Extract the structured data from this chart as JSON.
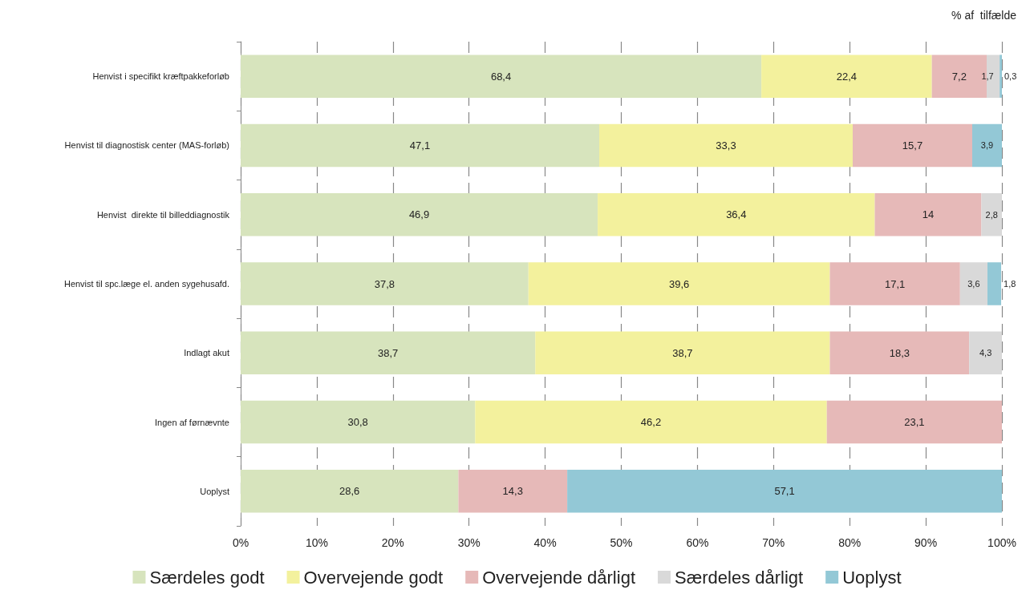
{
  "chart_data": {
    "type": "bar",
    "orientation": "horizontal",
    "stacked": true,
    "grid": "x",
    "legend": "bottom",
    "annotations": [
      "% af  tilfælde"
    ],
    "categories": [
      "Henvist i specifikt kræftpakkeforløb",
      "Henvist til diagnostisk center (MAS-forløb)",
      "Henvist  direkte til billeddiagnostik",
      "Henvist til spc.læge el. anden sygehusafd.",
      "Indlagt akut",
      "Ingen af førnævnte",
      "Uoplyst"
    ],
    "series": [
      {
        "name": "Særdeles godt",
        "color": "#d7e4bd",
        "values": [
          68.4,
          47.1,
          46.9,
          37.8,
          38.7,
          30.8,
          28.6
        ],
        "value_labels": [
          "68,4",
          "47,1",
          "46,9",
          "37,8",
          "38,7",
          "30,8",
          "28,6"
        ]
      },
      {
        "name": "Overvejende godt",
        "color": "#f3f19d",
        "values": [
          22.4,
          33.3,
          36.4,
          39.6,
          38.7,
          46.2,
          null
        ],
        "value_labels": [
          "22,4",
          "33,3",
          "36,4",
          "39,6",
          "38,7",
          "46,2",
          null
        ]
      },
      {
        "name": "Overvejende dårligt",
        "color": "#e6b9b8",
        "values": [
          7.2,
          15.7,
          14,
          17.1,
          18.3,
          23.1,
          14.3
        ],
        "value_labels": [
          "7,2",
          "15,7",
          "14",
          "17,1",
          "18,3",
          "23,1",
          "14,3"
        ]
      },
      {
        "name": "Særdeles dårligt",
        "color": "#d9d9d9",
        "values": [
          1.7,
          null,
          2.8,
          3.6,
          4.3,
          null,
          null
        ],
        "value_labels": [
          "1,7",
          null,
          "2,8",
          "3,6",
          "4,3",
          null,
          null
        ]
      },
      {
        "name": "Uoplyst",
        "color": "#93c8d6",
        "values": [
          0.3,
          3.9,
          null,
          1.8,
          null,
          null,
          57.1
        ],
        "value_labels": [
          "0,3",
          "3,9",
          null,
          "1,8",
          null,
          null,
          "57,1"
        ]
      }
    ],
    "xlim": [
      0,
      100
    ],
    "xticks": [
      {
        "value": 0,
        "label": "0%"
      },
      {
        "value": 10,
        "label": "10%"
      },
      {
        "value": 20,
        "label": "20%"
      },
      {
        "value": 30,
        "label": "30%"
      },
      {
        "value": 40,
        "label": "40%"
      },
      {
        "value": 50,
        "label": "50%"
      },
      {
        "value": 60,
        "label": "60%"
      },
      {
        "value": 70,
        "label": "70%"
      },
      {
        "value": 80,
        "label": "80%"
      },
      {
        "value": 90,
        "label": "90%"
      },
      {
        "value": 100,
        "label": "100%"
      }
    ]
  }
}
